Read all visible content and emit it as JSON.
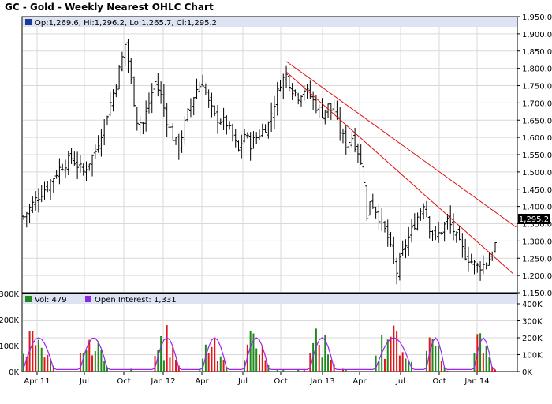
{
  "title": "GC - Gold - Weekly Nearest OHLC Chart",
  "colors": {
    "panel_bg": "#ffffff",
    "legend_bg": "#dde3f3",
    "grid": "#d9d9d9",
    "price_bar": "#000000",
    "trendline": "#e01010",
    "vol_up": "#1e8a1e",
    "vol_down": "#e01818",
    "open_interest": "#a020f0",
    "oi_swatch": "#8a2be2",
    "vol_swatch": "#1e8a1e"
  },
  "price_panel": {
    "legend": "Op:1,269.6, Hi:1,296.2, Lo:1,265.7, Cl:1,295.2",
    "last_price_label": "1,295.2"
  },
  "volume_panel": {
    "vol_legend": "Vol: 479",
    "oi_legend": "Open Interest: 1,331"
  },
  "chart_data": [
    {
      "type": "ohlc",
      "title": "GC - Gold - Weekly Nearest OHLC Chart",
      "ylim": [
        1150,
        1950
      ],
      "y_ticks": [
        "1,950.0",
        "1,900.0",
        "1,850.0",
        "1,800.0",
        "1,750.0",
        "1,700.0",
        "1,650.0",
        "1,600.0",
        "1,550.0",
        "1,500.0",
        "1,450.0",
        "1,400.0",
        "1,350.0",
        "1,300.0",
        "1,250.0",
        "1,200.0",
        "1,150.0"
      ],
      "x_ticks": [
        "Apr 11",
        "Jul",
        "Oct",
        "Jan 12",
        "Apr",
        "Jul",
        "Oct",
        "Jan 13",
        "Apr",
        "Jul",
        "Oct",
        "Jan 14"
      ],
      "last": {
        "open": 1269.6,
        "high": 1296.2,
        "low": 1265.7,
        "close": 1295.2
      },
      "close_path": [
        [
          0,
          1370
        ],
        [
          4,
          1420
        ],
        [
          8,
          1460
        ],
        [
          12,
          1510
        ],
        [
          16,
          1540
        ],
        [
          20,
          1500
        ],
        [
          24,
          1560
        ],
        [
          27,
          1640
        ],
        [
          29,
          1700
        ],
        [
          31,
          1760
        ],
        [
          33,
          1830
        ],
        [
          34,
          1870
        ],
        [
          35,
          1820
        ],
        [
          36,
          1760
        ],
        [
          38,
          1650
        ],
        [
          40,
          1640
        ],
        [
          42,
          1700
        ],
        [
          44,
          1760
        ],
        [
          46,
          1720
        ],
        [
          48,
          1650
        ],
        [
          50,
          1600
        ],
        [
          52,
          1570
        ],
        [
          54,
          1640
        ],
        [
          56,
          1700
        ],
        [
          58,
          1740
        ],
        [
          60,
          1760
        ],
        [
          62,
          1700
        ],
        [
          64,
          1660
        ],
        [
          66,
          1650
        ],
        [
          68,
          1640
        ],
        [
          70,
          1600
        ],
        [
          72,
          1560
        ],
        [
          74,
          1610
        ],
        [
          76,
          1580
        ],
        [
          78,
          1600
        ],
        [
          80,
          1620
        ],
        [
          82,
          1640
        ],
        [
          84,
          1700
        ],
        [
          86,
          1760
        ],
        [
          88,
          1780
        ],
        [
          90,
          1740
        ],
        [
          92,
          1720
        ],
        [
          94,
          1740
        ],
        [
          96,
          1720
        ],
        [
          98,
          1690
        ],
        [
          100,
          1670
        ],
        [
          102,
          1690
        ],
        [
          104,
          1670
        ],
        [
          106,
          1620
        ],
        [
          108,
          1580
        ],
        [
          110,
          1600
        ],
        [
          112,
          1560
        ],
        [
          114,
          1480
        ],
        [
          115,
          1360
        ],
        [
          116,
          1420
        ],
        [
          118,
          1390
        ],
        [
          120,
          1350
        ],
        [
          122,
          1310
        ],
        [
          124,
          1240
        ],
        [
          125,
          1210
        ],
        [
          126,
          1240
        ],
        [
          128,
          1290
        ],
        [
          130,
          1330
        ],
        [
          132,
          1370
        ],
        [
          134,
          1410
        ],
        [
          135,
          1380
        ],
        [
          136,
          1340
        ],
        [
          138,
          1310
        ],
        [
          140,
          1330
        ],
        [
          142,
          1360
        ],
        [
          144,
          1330
        ],
        [
          146,
          1290
        ],
        [
          148,
          1260
        ],
        [
          150,
          1240
        ],
        [
          152,
          1225
        ],
        [
          154,
          1230
        ],
        [
          156,
          1250
        ],
        [
          157,
          1265
        ],
        [
          158,
          1295.2
        ]
      ],
      "trendlines": [
        {
          "from": [
            1,
            1820
          ],
          "to": [
            0,
            1340
          ]
        },
        {
          "from": [
            0,
            1790
          ],
          "to": [
            0,
            1205
          ]
        }
      ]
    },
    {
      "type": "bar",
      "title": "",
      "ylim": [
        0,
        400
      ],
      "y_ticks_left": [
        "300K",
        "200K",
        "100K",
        "0K"
      ],
      "y_ticks_right": [
        "400K",
        "300K",
        "200K",
        "100K",
        "0K"
      ],
      "x_ticks": [
        "Apr 11",
        "Jul",
        "Oct",
        "Jan 12",
        "Apr",
        "Jul",
        "Oct",
        "Jan 13",
        "Apr",
        "Jul",
        "Oct",
        "Jan 14"
      ],
      "series": [
        {
          "name": "Vol",
          "last": 479
        },
        {
          "name": "Open Interest",
          "last": 1331
        }
      ]
    }
  ]
}
